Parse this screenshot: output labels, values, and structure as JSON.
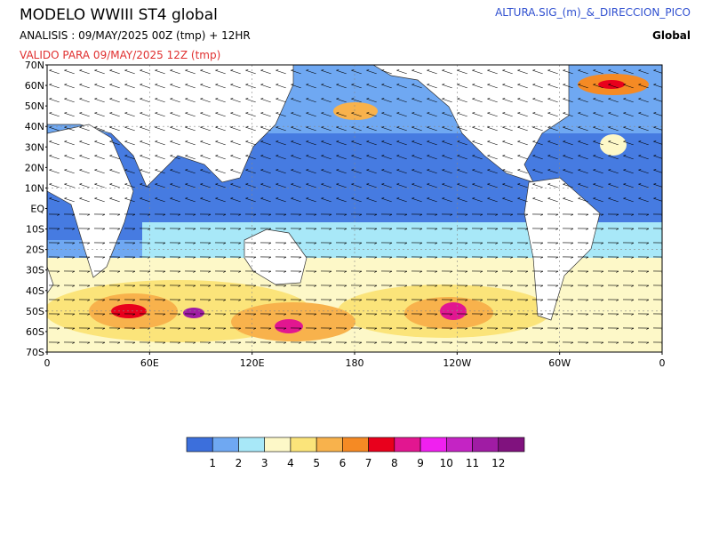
{
  "header": {
    "title": "MODELO  WWIII  ST4  global",
    "analysis": "ANALISIS : 09/MAY/2025 00Z  (tmp) + 12HR",
    "valid": "VALIDO PARA  09/MAY/2025 12Z  (tmp)",
    "variable": "ALTURA.SIG_(m)_&_DIRECCION_PICO",
    "region": "Global"
  },
  "map": {
    "lat_labels": [
      "70N",
      "60N",
      "50N",
      "40N",
      "30N",
      "20N",
      "10N",
      "EQ",
      "10S",
      "20S",
      "30S",
      "40S",
      "50S",
      "60S",
      "70S"
    ],
    "lon_labels": [
      "0",
      "60E",
      "120E",
      "180",
      "120W",
      "60W",
      "0"
    ]
  },
  "colorbar": {
    "labels": [
      1,
      2,
      3,
      4,
      5,
      6,
      7,
      8,
      9,
      10,
      11,
      12
    ],
    "colors": [
      "#3c6fdc",
      "#6fa8f2",
      "#a8e8f8",
      "#fdf8c8",
      "#fbe47a",
      "#f8b24c",
      "#f58a24",
      "#e8001c",
      "#e21690",
      "#f020f0",
      "#c424c4",
      "#a01ca4",
      "#80127e"
    ]
  }
}
